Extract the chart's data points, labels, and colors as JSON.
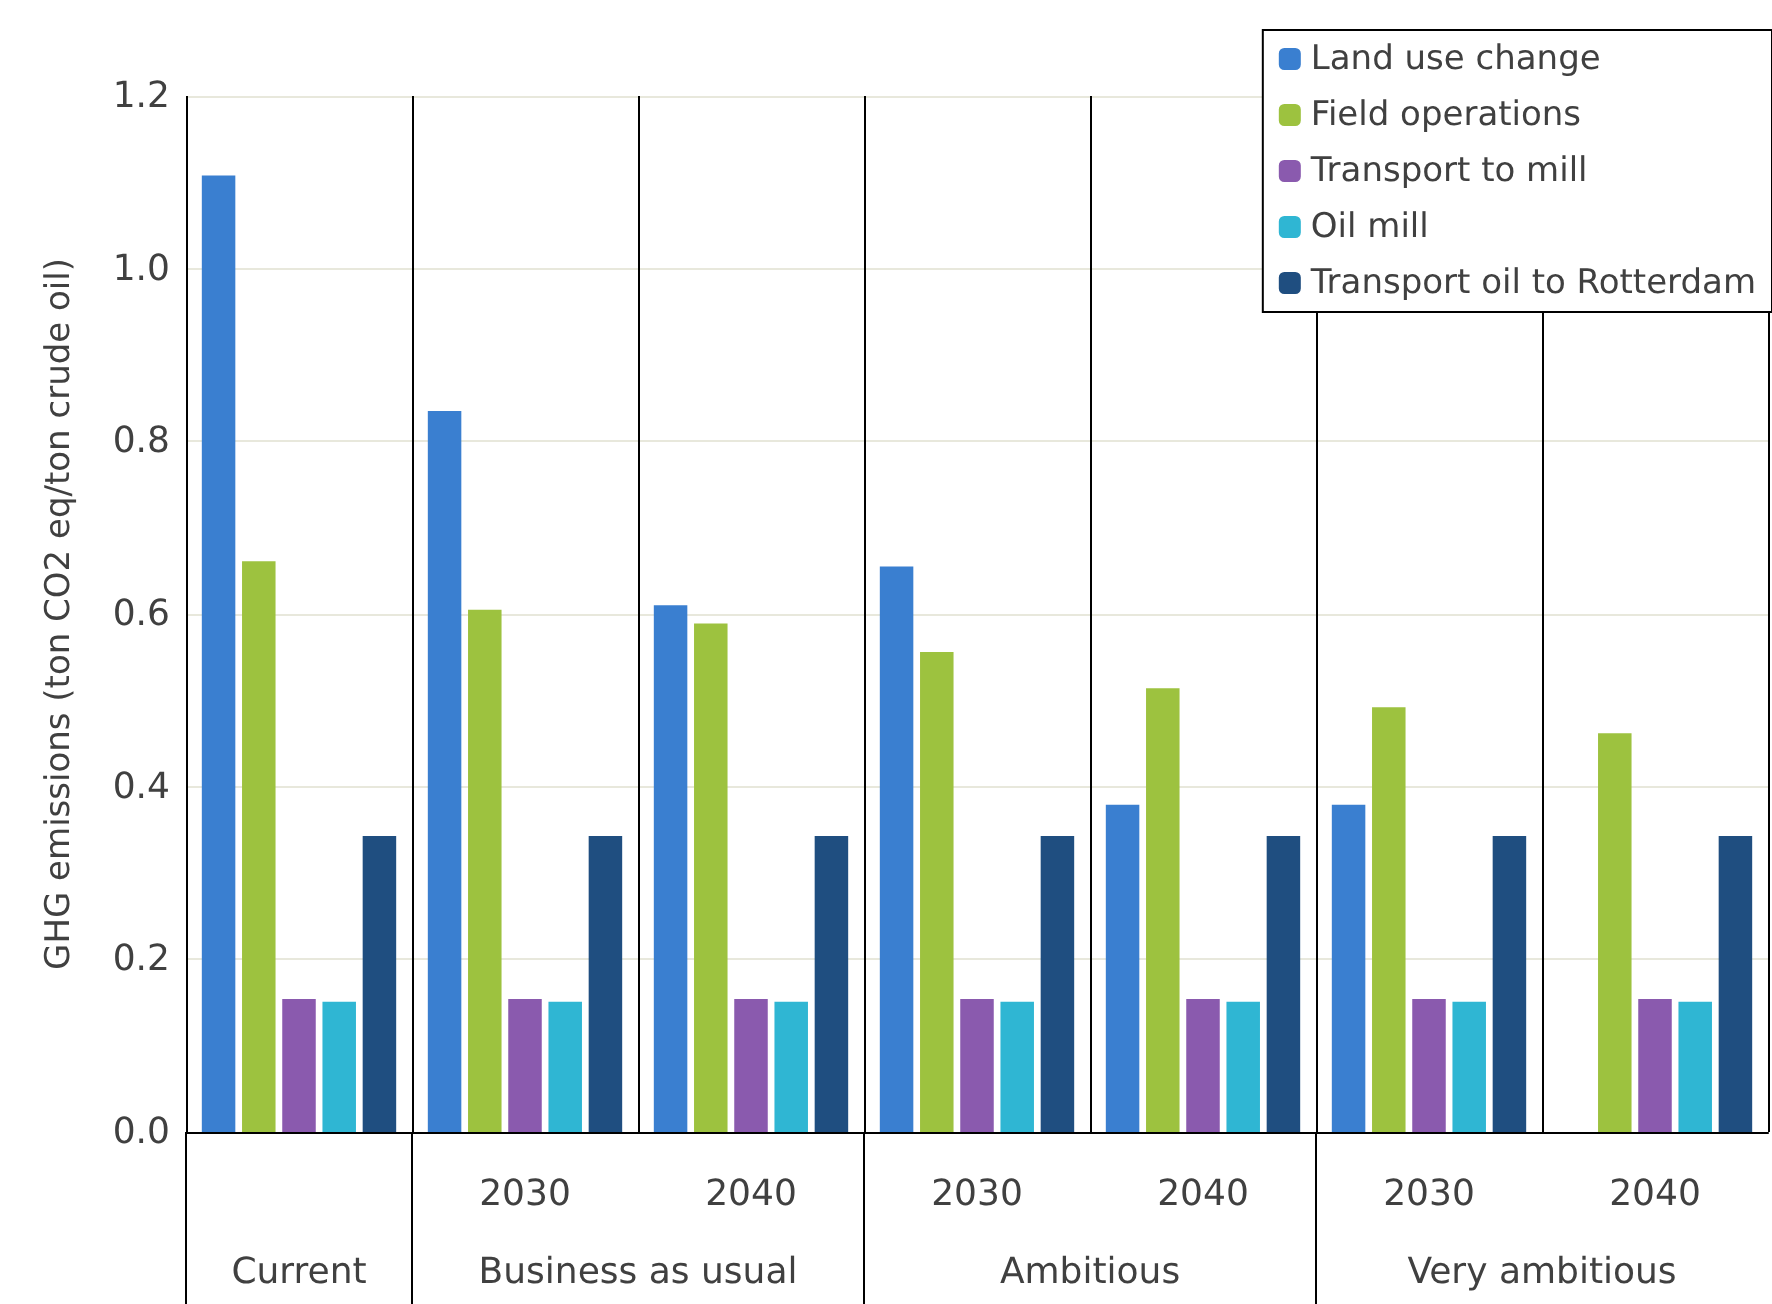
{
  "chart_data": {
    "type": "bar",
    "ylabel": "GHG emissions (ton CO2 eq/ton crude oil)",
    "categories": [
      null,
      "2030",
      "2040",
      "2030",
      "2040",
      "2030",
      "2040"
    ],
    "annotations": [
      "Current",
      "Business as usual",
      "Ambitious",
      "Very ambitious"
    ],
    "series": [
      {
        "name": "Land use change",
        "color": "#3a7fd0",
        "values": [
          1.108,
          0.835,
          0.61,
          0.655,
          0.379,
          0.379,
          0
        ]
      },
      {
        "name": "Field operations",
        "color": "#9dc23f",
        "values": [
          0.661,
          0.605,
          0.589,
          0.556,
          0.514,
          0.492,
          0.462
        ]
      },
      {
        "name": "Transport to mill",
        "color": "#8a5aae",
        "values": [
          0.154,
          0.154,
          0.154,
          0.154,
          0.154,
          0.154,
          0.154
        ]
      },
      {
        "name": "Oil mill",
        "color": "#2fb6d3",
        "values": [
          0.151,
          0.151,
          0.151,
          0.151,
          0.151,
          0.151,
          0.151
        ]
      },
      {
        "name": "Transport oil to Rotterdam",
        "color": "#1f4e80",
        "values": [
          0.343,
          0.343,
          0.343,
          0.343,
          0.343,
          0.343,
          0.343
        ]
      }
    ],
    "ylim": [
      0,
      1.2
    ],
    "yticks": [
      {
        "value": 0,
        "label": "0.0"
      },
      {
        "value": 0.2,
        "label": "0.2"
      },
      {
        "value": 0.4,
        "label": "0.4"
      },
      {
        "value": 0.6,
        "label": "0.6"
      },
      {
        "value": 0.8,
        "label": "0.8"
      },
      {
        "value": 1,
        "label": "1.0"
      },
      {
        "value": 1.2,
        "label": "1.2"
      }
    ],
    "grid": "y",
    "legend": "top right"
  }
}
